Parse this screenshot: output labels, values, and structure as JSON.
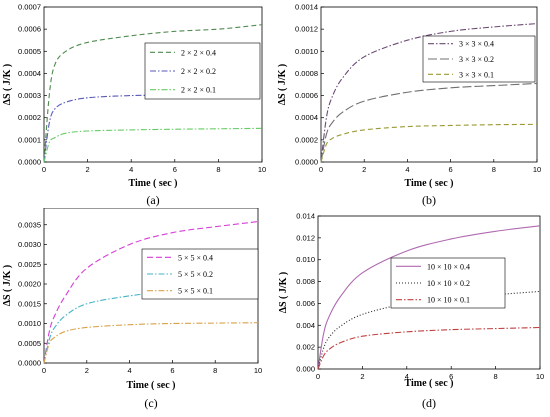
{
  "chart_data": [
    {
      "type": "line",
      "panel_label": "(a)",
      "xlabel": "Time ( sec )",
      "ylabel": "ΔS ( J/K )",
      "xlim": [
        0,
        10
      ],
      "ylim": [
        0,
        0.0007
      ],
      "xticks": [
        "0",
        "2",
        "4",
        "6",
        "8",
        "10"
      ],
      "yticks": [
        "0.0000",
        "0.0001",
        "0.0002",
        "0.0003",
        "0.0004",
        "0.0005",
        "0.0006",
        "0.0007"
      ],
      "x": [
        0,
        0.25,
        0.5,
        1,
        2,
        4,
        6,
        8,
        10
      ],
      "legend_position": "right",
      "series": [
        {
          "name": "2 × 2 × 0.4",
          "color": "#4f8a4f",
          "dash": "5,3",
          "values": [
            0,
            0.00031,
            0.00044,
            0.0005,
            0.00054,
            0.00057,
            0.00059,
            0.0006,
            0.00062
          ]
        },
        {
          "name": "2 × 2 × 0.2",
          "color": "#5a5ab8",
          "dash": "6,2,1.5,2",
          "values": [
            0,
            0.00018,
            0.00024,
            0.00027,
            0.00029,
            0.0003,
            0.000302,
            0.000304,
            0.000306
          ]
        },
        {
          "name": "2 × 2 × 0.1",
          "color": "#66cc66",
          "dash": "6,2,1.5,2",
          "values": [
            0,
            9e-05,
            0.00011,
            0.00013,
            0.00014,
            0.000145,
            0.000148,
            0.00015,
            0.000152
          ]
        }
      ]
    },
    {
      "type": "line",
      "panel_label": "(b)",
      "xlabel": "Time ( sec )",
      "ylabel": "ΔS ( J/K )",
      "xlim": [
        0,
        10
      ],
      "ylim": [
        0,
        0.0014
      ],
      "xticks": [
        "0",
        "2",
        "4",
        "6",
        "8",
        "10"
      ],
      "yticks": [
        "0.0000",
        "0.0002",
        "0.0004",
        "0.0006",
        "0.0008",
        "0.0010",
        "0.0012",
        "0.0014"
      ],
      "x": [
        0,
        0.25,
        0.5,
        1,
        2,
        4,
        6,
        8,
        10
      ],
      "legend_position": "right",
      "series": [
        {
          "name": "3 × 3 × 0.4",
          "color": "#6b4a72",
          "dash": "6,2,1.5,2",
          "values": [
            0,
            0.0004,
            0.00058,
            0.00076,
            0.00095,
            0.0011,
            0.00118,
            0.00122,
            0.00125
          ]
        },
        {
          "name": "3 × 3 × 0.2",
          "color": "#707070",
          "dash": "9,3",
          "values": [
            0,
            0.00025,
            0.00035,
            0.00045,
            0.00055,
            0.00063,
            0.00067,
            0.00069,
            0.00071
          ]
        },
        {
          "name": "3 × 3 × 0.1",
          "color": "#9a9a38",
          "dash": "5,3",
          "values": [
            0,
            0.00016,
            0.00021,
            0.00025,
            0.00029,
            0.00032,
            0.00033,
            0.000337,
            0.00034
          ]
        }
      ]
    },
    {
      "type": "line",
      "panel_label": "(c)",
      "xlabel": "Time ( sec )",
      "ylabel": "ΔS ( J/K )",
      "xlim": [
        0,
        10
      ],
      "ylim": [
        0,
        0.004
      ],
      "xticks": [
        "0",
        "2",
        "4",
        "6",
        "8",
        "10"
      ],
      "yticks": [
        "0.0000",
        "0.0005",
        "0.0010",
        "0.0015",
        "0.0020",
        "0.0025",
        "0.0030",
        "0.0035",
        "0.0040"
      ],
      "x": [
        0,
        0.25,
        0.5,
        1,
        2,
        4,
        6,
        8,
        10
      ],
      "legend_position": "right",
      "series": [
        {
          "name": "5 × 5 × 0.4",
          "color": "#d63fd6",
          "dash": "6,3",
          "values": [
            0,
            0.0008,
            0.0012,
            0.0017,
            0.0024,
            0.003,
            0.0033,
            0.00345,
            0.00358
          ]
        },
        {
          "name": "5 × 5 × 0.2",
          "color": "#45b5c8",
          "dash": "6,2,1.5,2",
          "values": [
            0,
            0.0006,
            0.0009,
            0.0012,
            0.0015,
            0.0017,
            0.00182,
            0.00188,
            0.00193
          ]
        },
        {
          "name": "5 × 5 × 0.1",
          "color": "#d9a24a",
          "dash": "6,2,1.5,2",
          "values": [
            0,
            0.0005,
            0.00065,
            0.0008,
            0.0009,
            0.00097,
            0.001,
            0.00101,
            0.00102
          ]
        }
      ]
    },
    {
      "type": "line",
      "panel_label": "(d)",
      "xlabel": "Time ( sec )",
      "ylabel": "ΔS ( J/K )",
      "xlim": [
        0,
        10
      ],
      "ylim": [
        0,
        0.014
      ],
      "xticks": [
        "0",
        "2",
        "4",
        "6",
        "8",
        "10"
      ],
      "yticks": [
        "0.000",
        "0.002",
        "0.004",
        "0.006",
        "0.008",
        "0.010",
        "0.012",
        "0.014"
      ],
      "x": [
        0,
        0.25,
        0.5,
        1,
        2,
        4,
        6,
        8,
        10
      ],
      "legend_position": "right",
      "series": [
        {
          "name": "10 × 10 × 0.4",
          "color": "#b06ab0",
          "dash": "",
          "values": [
            0,
            0.0032,
            0.0048,
            0.0066,
            0.0088,
            0.0108,
            0.0119,
            0.0126,
            0.0131
          ]
        },
        {
          "name": "10 × 10 × 0.2",
          "color": "#222222",
          "dash": "1,2",
          "values": [
            0,
            0.0019,
            0.0029,
            0.0039,
            0.005,
            0.006,
            0.0065,
            0.0068,
            0.0071
          ]
        },
        {
          "name": "10 × 10 × 0.1",
          "color": "#c04040",
          "dash": "6,2,1.5,2",
          "values": [
            0,
            0.0012,
            0.0018,
            0.0024,
            0.003,
            0.0034,
            0.0036,
            0.0037,
            0.0038
          ]
        }
      ]
    }
  ]
}
